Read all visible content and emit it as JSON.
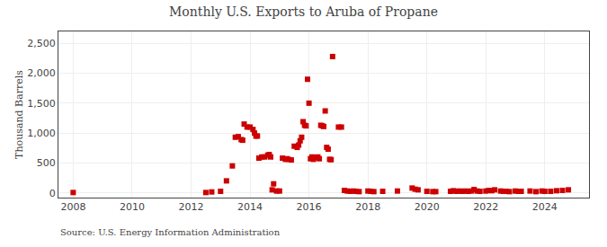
{
  "chart_data": {
    "type": "scatter",
    "title": "Monthly U.S. Exports to Aruba of Propane",
    "y_label": "Thousand Barrels",
    "annotations": [
      "Source: U.S. Energy Information Administration"
    ],
    "color": "#CC0000",
    "marker": "square",
    "grid": true,
    "xlim": [
      2007.5,
      2025.5
    ],
    "xticks": [
      2008,
      2010,
      2012,
      2014,
      2016,
      2018,
      2020,
      2022,
      2024
    ],
    "ylim": [
      -80,
      2700
    ],
    "yticks": [
      0,
      500,
      {
        "value": 1000,
        "label": "1,000"
      },
      {
        "value": 1500,
        "label": "1,500"
      },
      {
        "value": 2000,
        "label": "2,000"
      },
      {
        "value": 2500,
        "label": "2,500"
      }
    ],
    "x": [
      2008.0,
      2012.5,
      2012.7,
      2013.0,
      2013.2,
      2013.4,
      2013.5,
      2013.6,
      2013.7,
      2013.75,
      2013.8,
      2013.9,
      2014.0,
      2014.1,
      2014.15,
      2014.2,
      2014.25,
      2014.3,
      2014.4,
      2014.5,
      2014.6,
      2014.65,
      2014.7,
      2014.75,
      2014.8,
      2014.9,
      2015.0,
      2015.1,
      2015.2,
      2015.25,
      2015.3,
      2015.4,
      2015.5,
      2015.6,
      2015.65,
      2015.7,
      2015.75,
      2015.8,
      2015.85,
      2015.9,
      2015.95,
      2016.0,
      2016.05,
      2016.1,
      2016.15,
      2016.2,
      2016.25,
      2016.3,
      2016.35,
      2016.4,
      2016.45,
      2016.5,
      2016.55,
      2016.6,
      2016.65,
      2016.7,
      2016.75,
      2016.8,
      2017.0,
      2017.1,
      2017.2,
      2017.3,
      2017.4,
      2017.5,
      2017.6,
      2017.7,
      2018.0,
      2018.1,
      2018.2,
      2018.5,
      2019.0,
      2019.5,
      2019.6,
      2019.7,
      2020.0,
      2020.2,
      2020.3,
      2020.8,
      2020.9,
      2021.0,
      2021.1,
      2021.2,
      2021.3,
      2021.4,
      2021.5,
      2021.6,
      2021.7,
      2021.8,
      2022.0,
      2022.1,
      2022.2,
      2022.3,
      2022.5,
      2022.6,
      2022.7,
      2022.8,
      2023.0,
      2023.1,
      2023.2,
      2023.5,
      2023.7,
      2023.9,
      2024.0,
      2024.2,
      2024.4,
      2024.6,
      2024.8
    ],
    "values": [
      5,
      5,
      15,
      25,
      200,
      450,
      930,
      940,
      890,
      880,
      1150,
      1100,
      1100,
      1060,
      1000,
      950,
      950,
      580,
      600,
      600,
      630,
      640,
      600,
      50,
      150,
      30,
      30,
      580,
      560,
      570,
      560,
      550,
      780,
      760,
      800,
      870,
      930,
      1190,
      1130,
      1120,
      1900,
      1500,
      570,
      600,
      560,
      590,
      590,
      600,
      570,
      1130,
      1120,
      1110,
      1370,
      760,
      730,
      560,
      555,
      2280,
      1100,
      1100,
      40,
      30,
      25,
      30,
      25,
      20,
      30,
      25,
      20,
      25,
      30,
      80,
      60,
      50,
      25,
      20,
      20,
      25,
      35,
      25,
      30,
      25,
      30,
      25,
      30,
      55,
      30,
      25,
      30,
      40,
      35,
      50,
      30,
      25,
      25,
      20,
      30,
      25,
      25,
      30,
      20,
      30,
      25,
      25,
      35,
      40,
      50
    ]
  }
}
